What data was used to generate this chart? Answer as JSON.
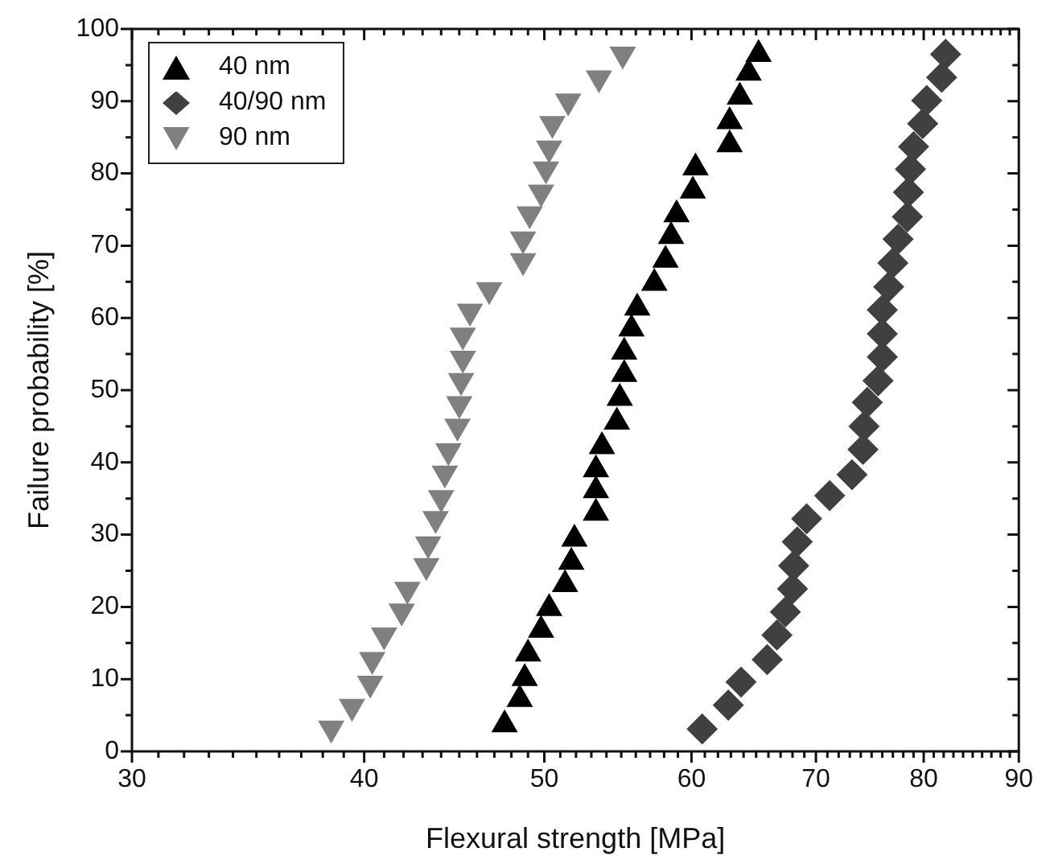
{
  "chart_data": {
    "type": "scatter",
    "xlabel": "Flexural strength [MPa]",
    "ylabel": "Failure probability [%]",
    "log": "x",
    "grid": false,
    "legend": "top left",
    "xlim": [
      30,
      90
    ],
    "ylim": [
      0,
      100
    ],
    "xticks": [
      30,
      {
        "value": 31,
        "label": null
      },
      {
        "value": 32,
        "label": null
      },
      {
        "value": 33,
        "label": null
      },
      {
        "value": 34,
        "label": null
      },
      {
        "value": 35,
        "label": null
      },
      {
        "value": 36,
        "label": null
      },
      {
        "value": 37,
        "label": null
      },
      {
        "value": 38,
        "label": null
      },
      {
        "value": 39,
        "label": null
      },
      40,
      {
        "value": 41,
        "label": null
      },
      {
        "value": 42,
        "label": null
      },
      {
        "value": 43,
        "label": null
      },
      {
        "value": 44,
        "label": null
      },
      {
        "value": 45,
        "label": null
      },
      {
        "value": 46,
        "label": null
      },
      {
        "value": 47,
        "label": null
      },
      {
        "value": 48,
        "label": null
      },
      {
        "value": 49,
        "label": null
      },
      50,
      {
        "value": 51,
        "label": null
      },
      {
        "value": 52,
        "label": null
      },
      {
        "value": 53,
        "label": null
      },
      {
        "value": 54,
        "label": null
      },
      {
        "value": 55,
        "label": null
      },
      {
        "value": 56,
        "label": null
      },
      {
        "value": 57,
        "label": null
      },
      {
        "value": 58,
        "label": null
      },
      {
        "value": 59,
        "label": null
      },
      60,
      {
        "value": 61,
        "label": null
      },
      {
        "value": 62,
        "label": null
      },
      {
        "value": 63,
        "label": null
      },
      {
        "value": 64,
        "label": null
      },
      {
        "value": 65,
        "label": null
      },
      {
        "value": 66,
        "label": null
      },
      {
        "value": 67,
        "label": null
      },
      {
        "value": 68,
        "label": null
      },
      {
        "value": 69,
        "label": null
      },
      70,
      {
        "value": 71,
        "label": null
      },
      {
        "value": 72,
        "label": null
      },
      {
        "value": 73,
        "label": null
      },
      {
        "value": 74,
        "label": null
      },
      {
        "value": 75,
        "label": null
      },
      {
        "value": 76,
        "label": null
      },
      {
        "value": 77,
        "label": null
      },
      {
        "value": 78,
        "label": null
      },
      {
        "value": 79,
        "label": null
      },
      80,
      {
        "value": 81,
        "label": null
      },
      {
        "value": 82,
        "label": null
      },
      {
        "value": 83,
        "label": null
      },
      {
        "value": 84,
        "label": null
      },
      {
        "value": 85,
        "label": null
      },
      {
        "value": 86,
        "label": null
      },
      {
        "value": 87,
        "label": null
      },
      {
        "value": 88,
        "label": null
      },
      {
        "value": 89,
        "label": null
      },
      90
    ],
    "yticks": [
      0,
      {
        "value": 5,
        "label": null
      },
      10,
      {
        "value": 15,
        "label": null
      },
      20,
      {
        "value": 25,
        "label": null
      },
      30,
      {
        "value": 35,
        "label": null
      },
      40,
      {
        "value": 45,
        "label": null
      },
      50,
      {
        "value": 55,
        "label": null
      },
      60,
      {
        "value": 65,
        "label": null
      },
      70,
      {
        "value": 75,
        "label": null
      },
      80,
      {
        "value": 85,
        "label": null
      },
      90,
      {
        "value": 95,
        "label": null
      },
      100
    ],
    "series": [
      {
        "name": "40 nm",
        "color": "#000000",
        "marker": "triangle",
        "x": [
          47.6,
          48.5,
          48.8,
          49.0,
          49.8,
          50.3,
          51.3,
          51.7,
          51.9,
          53.3,
          53.3,
          53.3,
          53.7,
          54.7,
          54.9,
          55.2,
          55.2,
          55.7,
          56.1,
          57.3,
          58.1,
          58.5,
          58.9,
          60.1,
          60.3,
          62.9,
          62.9,
          63.7,
          64.4,
          65.2
        ],
        "values": [
          3.7,
          7.2,
          10.1,
          13.5,
          16.8,
          19.8,
          23.1,
          26.2,
          29.4,
          33.0,
          36.1,
          39.0,
          42.2,
          45.6,
          48.9,
          52.2,
          55.3,
          58.5,
          61.4,
          64.8,
          68.0,
          71.3,
          74.3,
          77.6,
          80.8,
          84.0,
          87.2,
          90.6,
          93.9,
          96.5
        ]
      },
      {
        "name": "40/90 nm",
        "color": "#404040",
        "marker": "diamond",
        "x": [
          60.8,
          62.8,
          63.8,
          65.9,
          66.7,
          67.4,
          68.0,
          68.1,
          68.4,
          69.2,
          71.2,
          73.2,
          74.2,
          74.3,
          74.6,
          75.6,
          76.0,
          76.0,
          76.0,
          76.6,
          77.0,
          77.5,
          78.4,
          78.5,
          78.7,
          79.0,
          79.9,
          80.3,
          81.8,
          82.2
        ],
        "values": [
          3.1,
          6.4,
          9.6,
          12.7,
          16.1,
          19.3,
          22.5,
          25.7,
          29.0,
          32.2,
          35.4,
          38.3,
          41.8,
          45.0,
          48.3,
          51.3,
          54.6,
          57.8,
          61.1,
          64.3,
          67.6,
          70.9,
          74.0,
          77.4,
          80.6,
          83.7,
          86.9,
          90.1,
          93.3,
          96.5
        ]
      },
      {
        "name": "90 nm",
        "color": "#808080",
        "marker": "triangle_down",
        "x": [
          38.4,
          39.4,
          40.3,
          40.4,
          41.0,
          41.9,
          42.2,
          43.2,
          43.3,
          43.7,
          44.0,
          44.2,
          44.4,
          44.9,
          45.0,
          45.1,
          45.2,
          45.2,
          45.6,
          46.7,
          48.7,
          48.7,
          49.1,
          49.8,
          50.1,
          50.3,
          50.5,
          51.5,
          53.5,
          55.1
        ],
        "values": [
          3.2,
          6.2,
          9.4,
          12.7,
          16.1,
          19.4,
          22.4,
          25.7,
          28.7,
          32.2,
          35.1,
          38.5,
          41.6,
          45.0,
          48.1,
          51.3,
          54.4,
          57.6,
          60.9,
          63.9,
          67.9,
          70.9,
          74.4,
          77.4,
          80.6,
          83.5,
          86.9,
          90.0,
          93.2,
          96.5
        ]
      }
    ]
  }
}
